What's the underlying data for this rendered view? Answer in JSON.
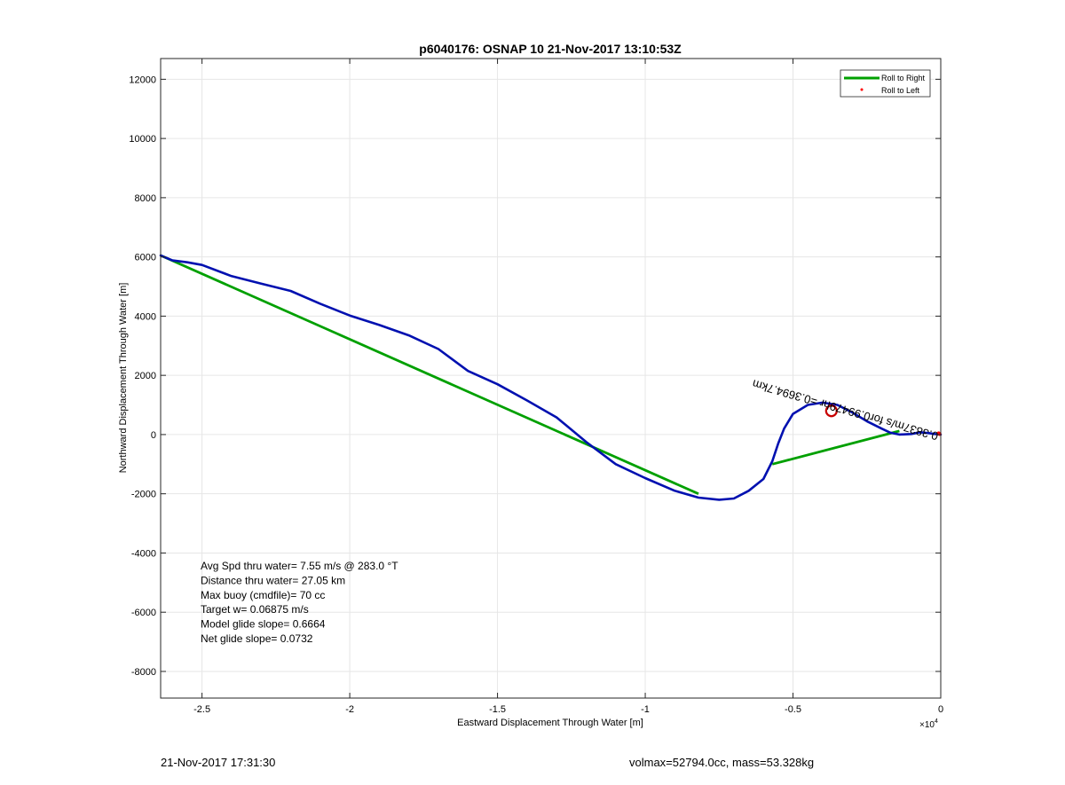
{
  "chart_data": {
    "type": "line",
    "title": "p6040176: OSNAP 10 21-Nov-2017 13:10:53Z",
    "xlabel": "Eastward Displacement Through Water [m]",
    "ylabel": "Northward Displacement Through Water [m]",
    "x_exponent_label": "×10",
    "x_exponent_power": "4",
    "xlim": [
      -2.64,
      0
    ],
    "ylim": [
      -8900,
      12700
    ],
    "x_scale_factor": 10000,
    "xticks": [
      -2.5,
      -2,
      -1.5,
      -1,
      -0.5,
      0
    ],
    "xtick_labels": [
      "-2.5",
      "-2",
      "-1.5",
      "-1",
      "-0.5",
      "0"
    ],
    "yticks": [
      -8000,
      -6000,
      -4000,
      -2000,
      0,
      2000,
      4000,
      6000,
      8000,
      10000,
      12000
    ],
    "ytick_labels": [
      "-8000",
      "-6000",
      "-4000",
      "-2000",
      "0",
      "2000",
      "4000",
      "6000",
      "8000",
      "10000",
      "12000"
    ],
    "grid": true,
    "legend_position": "top-right",
    "legend": [
      {
        "label": "Roll to Right",
        "color": "#00a000",
        "marker": "line"
      },
      {
        "label": "Roll to Left",
        "color": "#ff0000",
        "marker": "dot"
      }
    ],
    "series": [
      {
        "name": "Roll to Right",
        "color": "#00a000",
        "style": "line",
        "segments": [
          {
            "x": [
              -2.64,
              -0.82
            ],
            "y": [
              6050,
              -2000
            ]
          },
          {
            "x": [
              -0.57,
              -0.14
            ],
            "y": [
              -1000,
              120
            ]
          }
        ]
      },
      {
        "color": "#0010b0",
        "style": "line",
        "x": [
          -2.64,
          -2.6,
          -2.55,
          -2.5,
          -2.4,
          -2.3,
          -2.2,
          -2.1,
          -2.0,
          -1.9,
          -1.8,
          -1.7,
          -1.6,
          -1.5,
          -1.4,
          -1.3,
          -1.2,
          -1.1,
          -1.0,
          -0.9,
          -0.82,
          -0.75,
          -0.7,
          -0.65,
          -0.6,
          -0.57,
          -0.55,
          -0.53,
          -0.5,
          -0.45,
          -0.4,
          -0.35,
          -0.3,
          -0.25,
          -0.2,
          -0.17,
          -0.14,
          -0.1,
          -0.07,
          -0.04,
          -0.02,
          0
        ],
        "y": [
          6050,
          5880,
          5820,
          5730,
          5350,
          5100,
          4850,
          4420,
          4020,
          3700,
          3350,
          2890,
          2150,
          1700,
          1150,
          580,
          -250,
          -1000,
          -1470,
          -1900,
          -2130,
          -2200,
          -2160,
          -1900,
          -1500,
          -900,
          -300,
          200,
          700,
          1000,
          1080,
          1000,
          750,
          450,
          200,
          60,
          0,
          20,
          80,
          50,
          20,
          0
        ]
      },
      {
        "name": "Roll to Left",
        "color": "#ff0000",
        "style": "dot",
        "x": [
          -0.007,
          -0.004
        ],
        "y": [
          40,
          20
        ]
      }
    ],
    "target_marker": {
      "x": -0.37,
      "y": 800,
      "color": "#c80000"
    },
    "trajectory_label": {
      "text": "0.3837m/s for0.99479hr =0.3694.7km",
      "x": 0,
      "y": 0,
      "rotation_deg": 196
    },
    "annotations": [
      "Avg Spd thru water=  7.55 m/s @ 283.0 °T",
      "Distance thru water= 27.05 km",
      "Max buoy (cmdfile)= 70 cc",
      "Target w= 0.06875 m/s",
      "Model glide slope= 0.6664",
      "Net glide slope= 0.0732"
    ]
  },
  "footer": {
    "timestamp": "21-Nov-2017 17:31:30",
    "info": "volmax=52794.0cc, mass=53.328kg"
  }
}
